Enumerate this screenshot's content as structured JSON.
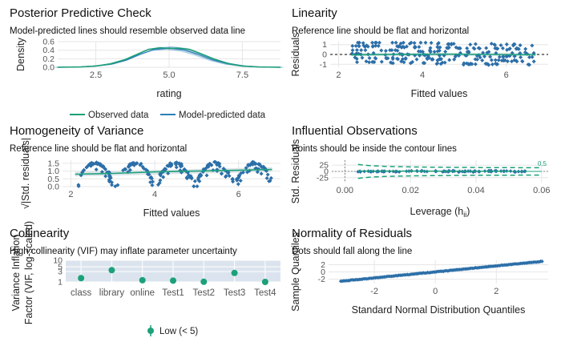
{
  "colors": {
    "observed": "#1b9e77",
    "predicted": "#2c7fb8",
    "point": "#2c6fa8",
    "loess": "#1ca17a",
    "ref": "#000000",
    "band": "#d5dde3",
    "grid": "#e6e6e6",
    "axis_text": "#555555",
    "contour": "#1ca17a",
    "low_vif": "#1ca17a",
    "vif_band": "#dbe4ee"
  },
  "chart_data": [
    {
      "id": "ppc",
      "type": "line",
      "title": "Posterior Predictive Check",
      "subtitle": "Model-predicted lines should resemble observed data line",
      "xlabel": "rating",
      "ylabel": "Density",
      "xlim": [
        1.2,
        8.8
      ],
      "ylim": [
        0,
        0.6
      ],
      "xticks": [
        2.5,
        5.0,
        7.5
      ],
      "xticklabels": [
        "2.5",
        "5.0",
        "7.5"
      ],
      "yticks": [
        0,
        0.2,
        0.4,
        0.6
      ],
      "yticklabels": [
        "0.0",
        "0.2",
        "0.4",
        "0.6"
      ],
      "grid": true,
      "legend": {
        "position": "bottom",
        "entries": [
          {
            "label": "Observed data",
            "color": "#1b9e77"
          },
          {
            "label": "Model-predicted data",
            "color": "#2c7fb8"
          }
        ]
      },
      "series": [
        {
          "name": "Observed data",
          "x": [
            1.2,
            2.0,
            2.5,
            3.0,
            3.5,
            4.0,
            4.3,
            4.7,
            5.0,
            5.3,
            5.7,
            6.0,
            6.5,
            7.0,
            7.5,
            8.0,
            8.8
          ],
          "y": [
            0.0,
            0.01,
            0.03,
            0.08,
            0.18,
            0.33,
            0.42,
            0.46,
            0.44,
            0.45,
            0.42,
            0.34,
            0.2,
            0.09,
            0.03,
            0.01,
            0.0
          ]
        },
        {
          "name": "Model-predicted data",
          "x": [
            1.2,
            2.0,
            2.5,
            3.0,
            3.5,
            4.0,
            4.5,
            5.0,
            5.5,
            6.0,
            6.5,
            7.0,
            7.5,
            8.0,
            8.8
          ],
          "y": [
            0.0,
            0.01,
            0.03,
            0.07,
            0.16,
            0.3,
            0.42,
            0.45,
            0.41,
            0.3,
            0.17,
            0.08,
            0.03,
            0.01,
            0.0
          ]
        }
      ]
    },
    {
      "id": "linearity",
      "type": "scatter",
      "title": "Linearity",
      "subtitle": "Reference line should be flat and horizontal",
      "xlabel": "Fitted values",
      "ylabel": "Residuals",
      "xlim": [
        1.8,
        7.0
      ],
      "ylim": [
        -1.3,
        1.3
      ],
      "xticks": [
        2,
        4,
        6
      ],
      "xticklabels": [
        "2",
        "4",
        "6"
      ],
      "yticks": [
        1,
        0,
        -1
      ],
      "yticklabels": [
        "1",
        "0",
        "-1"
      ],
      "grid": true,
      "reference_line": 0,
      "points_x_range": [
        2.3,
        6.7
      ],
      "points_y_range": [
        -1.1,
        1.2
      ],
      "loess": {
        "x": [
          2.3,
          3.5,
          4.5,
          5.5,
          6.7
        ],
        "y": [
          -0.05,
          0.02,
          0.03,
          0.0,
          -0.03
        ]
      }
    },
    {
      "id": "homogeneity",
      "type": "scatter",
      "title": "Homogeneity of Variance",
      "subtitle": "Reference line should be flat and horizontal",
      "xlabel": "Fitted values",
      "ylabel": "√|Std. residuals|",
      "xlim": [
        1.8,
        7.0
      ],
      "ylim": [
        0,
        1.7
      ],
      "xticks": [
        2,
        4,
        6
      ],
      "xticklabels": [
        "2",
        "4",
        "6"
      ],
      "yticks": [
        0.0,
        0.5,
        1.0,
        1.5
      ],
      "yticklabels": [
        "0.0",
        "0.5",
        "1.0",
        "1.5"
      ],
      "grid": true,
      "points_x_range": [
        2.1,
        6.8
      ],
      "points_y_range": [
        0.0,
        1.6
      ],
      "loess": {
        "x": [
          2.1,
          3.0,
          4.0,
          5.0,
          6.0,
          6.8
        ],
        "y": [
          0.8,
          0.85,
          0.95,
          1.0,
          1.05,
          1.1
        ]
      }
    },
    {
      "id": "influential",
      "type": "scatter",
      "title": "Influential Observations",
      "subtitle": "Points should be inside the contour lines",
      "xlabel": "Leverage (h",
      "xlabel_sub": "ii",
      "xlabel_end": ")",
      "ylabel": "Std. Residuals",
      "xlim": [
        -0.004,
        0.062
      ],
      "ylim": [
        -45,
        45
      ],
      "xticks": [
        0.0,
        0.02,
        0.04,
        0.06
      ],
      "xticklabels": [
        "0.00",
        "0.02",
        "0.04",
        "0.06"
      ],
      "yticks": [
        25,
        0,
        -25
      ],
      "yticklabels": [
        "25",
        "0",
        "-25"
      ],
      "grid": true,
      "points_x_range": [
        0.004,
        0.055
      ],
      "points_y_range": [
        -3,
        3
      ],
      "contour_label": "0.5"
    },
    {
      "id": "collinearity",
      "type": "scatter",
      "title": "Collinearity",
      "subtitle": "High collinearity (VIF) may inflate parameter uncertainty",
      "xlabel": "",
      "ylabel": "Variance Inflation Factor (VIF, log-scaled)",
      "ylabel_line1": "Variance Inflation",
      "ylabel_line2": "Factor (VIF, log-scaled)",
      "categories": [
        "class",
        "library",
        "online",
        "Test1",
        "Test2",
        "Test3",
        "Test4"
      ],
      "values": [
        1.5,
        3.5,
        1.2,
        1.15,
        1.02,
        2.6,
        1.0
      ],
      "ylim": [
        1,
        10
      ],
      "yscale": "log",
      "yticks": [
        1,
        3,
        5,
        10
      ],
      "yticklabels": [
        "1",
        "3",
        "5",
        "10"
      ],
      "grid": true,
      "legend": {
        "position": "bottom",
        "entries": [
          {
            "label": "Low (< 5)",
            "color": "#1ca17a"
          }
        ]
      }
    },
    {
      "id": "normality",
      "type": "scatter",
      "title": "Normality of Residuals",
      "subtitle": "Dots should fall along the line",
      "xlabel": "Standard Normal Distribution Quantiles",
      "ylabel": "Sample Quantiles",
      "xlim": [
        -3.5,
        3.7
      ],
      "ylim": [
        -3.2,
        3.2
      ],
      "xticks": [
        -2,
        0,
        2
      ],
      "xticklabels": [
        "-2",
        "0",
        "2"
      ],
      "yticks": [
        2,
        0,
        -2
      ],
      "yticklabels": [
        "2",
        "0",
        "-2"
      ],
      "grid": true,
      "points_x_range": [
        -3.1,
        3.5
      ],
      "points_y_range": [
        -2.7,
        2.9
      ]
    }
  ]
}
